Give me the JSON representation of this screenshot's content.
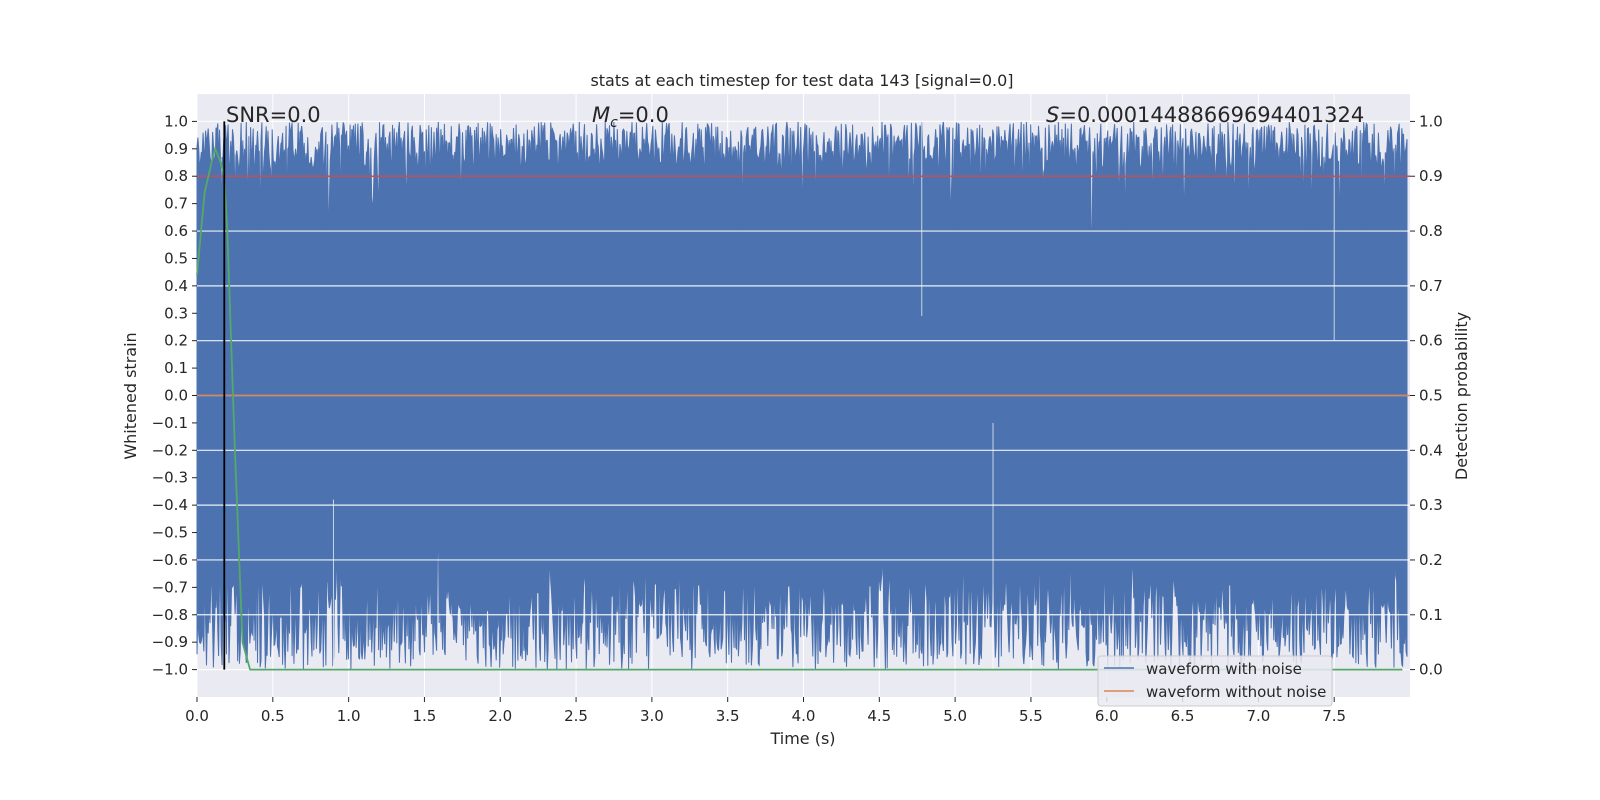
{
  "chart_data": {
    "type": "line",
    "title": "stats at each timestep for test data 143 [signal=0.0]",
    "xlabel": "Time (s)",
    "ylabel": "Whitened strain",
    "ylabel_right": "Detection probability",
    "xlim": [
      0.0,
      8.0
    ],
    "ylim": [
      -1.1,
      1.1
    ],
    "ylim_right": [
      -0.05,
      1.05
    ],
    "x_ticks": [
      "0.0",
      "0.5",
      "1.0",
      "1.5",
      "2.0",
      "2.5",
      "3.0",
      "3.5",
      "4.0",
      "4.5",
      "5.0",
      "5.5",
      "6.0",
      "6.5",
      "7.0",
      "7.5"
    ],
    "y_ticks": [
      "1.0",
      "0.9",
      "0.8",
      "0.7",
      "0.6",
      "0.5",
      "0.4",
      "0.3",
      "0.2",
      "0.1",
      "0.0",
      "−0.1",
      "−0.2",
      "−0.3",
      "−0.4",
      "−0.5",
      "−0.6",
      "−0.7",
      "−0.8",
      "−0.9",
      "−1.0"
    ],
    "y_ticks_right": [
      "1.0",
      "0.9",
      "0.8",
      "0.7",
      "0.6",
      "0.5",
      "0.4",
      "0.3",
      "0.2",
      "0.1",
      "0.0"
    ],
    "grid": true,
    "legend_position": "lower right",
    "annotations": {
      "snr": "SNR=0.0",
      "mc_symbol": "M",
      "mc_sub": "c",
      "mc_value": "=0.0",
      "s_symbol": "S",
      "s_value": "=0.00014488669694401324"
    },
    "series": [
      {
        "name": "waveform with noise",
        "color": "#4c72b0",
        "description": "whitened noisy strain filling range -1 to 1"
      },
      {
        "name": "waveform without noise",
        "color": "#dd8452",
        "values_constant": 0.0
      },
      {
        "name": "",
        "color": "#55a868",
        "axis": "right",
        "x": [
          0.0,
          0.05,
          0.1,
          0.12,
          0.15,
          0.18,
          0.2,
          0.25,
          0.3,
          0.35,
          0.4,
          7.95
        ],
        "y": [
          0.72,
          0.87,
          0.93,
          0.95,
          0.93,
          0.9,
          0.8,
          0.4,
          0.05,
          0.0,
          0.0,
          0.0
        ]
      }
    ],
    "threshold_line": {
      "color": "#c44e52",
      "y_right": 0.9
    },
    "vertical_marker": {
      "color": "#000000",
      "x": 0.18
    }
  }
}
